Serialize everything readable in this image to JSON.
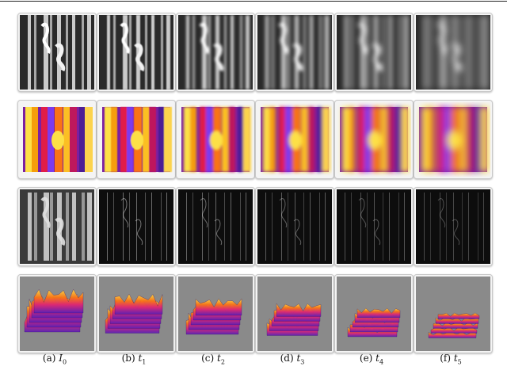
{
  "figure": {
    "captions": [
      {
        "label": "(a)",
        "symbol": "I",
        "subscript": "0"
      },
      {
        "label": "(b)",
        "symbol": "t",
        "subscript": "1"
      },
      {
        "label": "(c)",
        "symbol": "t",
        "subscript": "2"
      },
      {
        "label": "(d)",
        "symbol": "t",
        "subscript": "3"
      },
      {
        "label": "(e)",
        "symbol": "t",
        "subscript": "4"
      },
      {
        "label": "(f)",
        "symbol": "t",
        "subscript": "5"
      }
    ],
    "rows": [
      {
        "kind": "grayscale-image",
        "blur": [
          0,
          0.6,
          1.5,
          2.4,
          3.3,
          4.2
        ]
      },
      {
        "kind": "surface-plot-top-view",
        "blur": [
          0,
          0.6,
          1.5,
          2.4,
          3.3,
          4.2
        ]
      },
      {
        "kind": "residual-image",
        "blur": [
          0,
          0,
          0,
          0,
          0,
          0
        ]
      },
      {
        "kind": "surface-plot-3d",
        "blur": [
          0,
          0.5,
          1,
          1.5,
          2,
          2.5
        ]
      }
    ]
  }
}
